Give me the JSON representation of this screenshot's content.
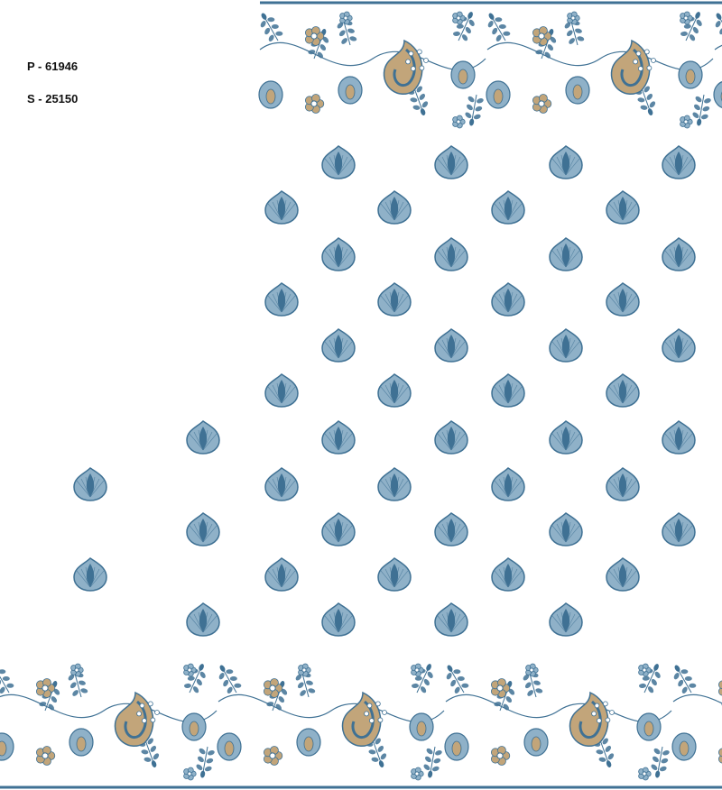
{
  "labels": {
    "p_code": "P - 61946",
    "s_code": "S - 25150"
  },
  "colors": {
    "blue": "#3f7194",
    "light_blue": "#8fb1c8",
    "tan": "#c2a57a",
    "background": "#ffffff"
  },
  "motifs": {
    "buta_icon": "teardrop-buta",
    "border_icon": "floral-paisley-vine"
  }
}
